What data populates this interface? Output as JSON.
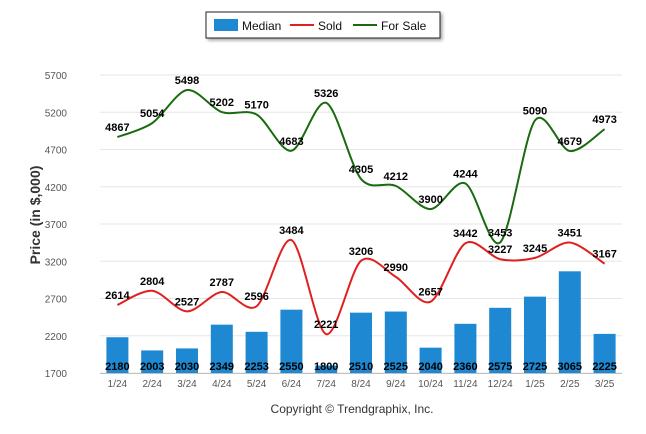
{
  "chart_data": {
    "type": "bar",
    "categories": [
      "1/24",
      "2/24",
      "3/24",
      "4/24",
      "5/24",
      "6/24",
      "7/24",
      "8/24",
      "9/24",
      "10/24",
      "11/24",
      "12/24",
      "1/25",
      "2/25",
      "3/25"
    ],
    "series": [
      {
        "name": "Median",
        "type": "bar",
        "color": "#1f88d2",
        "values": [
          2180,
          2003,
          2030,
          2349,
          2253,
          2550,
          1800,
          2510,
          2525,
          2040,
          2360,
          2575,
          2725,
          3065,
          2225
        ]
      },
      {
        "name": "Sold",
        "type": "line",
        "color": "#e02020",
        "values": [
          2614,
          2804,
          2527,
          2787,
          2596,
          3484,
          2221,
          3206,
          2990,
          2657,
          3442,
          3227,
          3245,
          3451,
          3167
        ]
      },
      {
        "name": "For Sale",
        "type": "line",
        "color": "#1a6b10",
        "values": [
          4867,
          5054,
          5498,
          5202,
          5170,
          4683,
          5326,
          4305,
          4212,
          3900,
          4244,
          3453,
          5090,
          4679,
          4973
        ]
      }
    ],
    "ylabel": "Price (in $,000)",
    "xlabel": "",
    "ylim": [
      1700,
      5700
    ],
    "yticks": [
      1700,
      2200,
      2700,
      3200,
      3700,
      4200,
      4700,
      5200,
      5700
    ],
    "grid": true,
    "legend": "top-center"
  },
  "copyright": "Copyright © Trendgraphix, Inc."
}
